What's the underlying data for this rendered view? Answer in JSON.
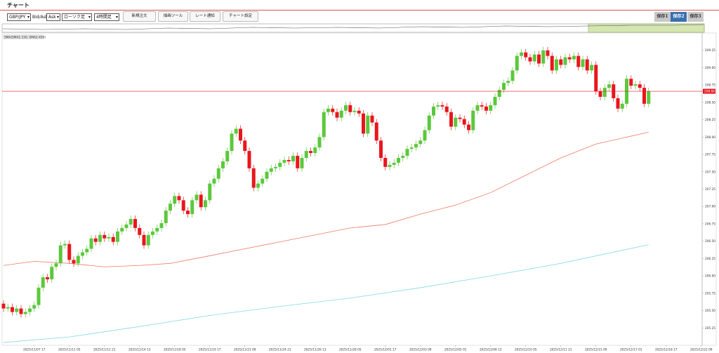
{
  "header": {
    "title": "チャート"
  },
  "toolbar": {
    "symbol": "GBP/JPY",
    "bid_ask_label": "Bid/Ask",
    "side": "Ask",
    "chart_style": "ローソク足",
    "timeframe": "4時間足",
    "buttons": [
      "新規注文",
      "描画ツール",
      "レート通知",
      "チャート設定"
    ],
    "saves": [
      "保存1",
      "保存2",
      "保存3"
    ]
  },
  "chart_data": {
    "type": "candlestick",
    "indicator_label": "SMA(SMA1:150, SMA2:450)",
    "up_color": "#5cc83c",
    "down_color": "#e8161e",
    "open": [
      205.6,
      205.53,
      205.55,
      205.48,
      205.53,
      205.45,
      205.48,
      205.53,
      205.58,
      205.83,
      205.98,
      205.95,
      206.13,
      206.18,
      206.44,
      206.46,
      206.23,
      206.18,
      206.29,
      206.34,
      206.39,
      206.54,
      206.49,
      206.59,
      206.54,
      206.56,
      206.49,
      206.64,
      206.69,
      206.74,
      206.82,
      206.69,
      206.59,
      206.44,
      206.59,
      206.64,
      206.69,
      206.76,
      206.94,
      207.04,
      207.15,
      207.09,
      206.94,
      206.89,
      207.09,
      207.17,
      206.99,
      207.09,
      207.33,
      207.4,
      207.55,
      207.65,
      207.8,
      208.05,
      208.12,
      207.95,
      207.8,
      207.55,
      207.27,
      207.33,
      207.4,
      207.5,
      207.55,
      207.57,
      207.63,
      207.67,
      207.65,
      207.73,
      207.55,
      207.7,
      207.8,
      207.77,
      207.85,
      208.0,
      208.36,
      208.41,
      208.36,
      208.28,
      208.38,
      208.46,
      208.36,
      208.38,
      208.34,
      208.05,
      208.31,
      208.21,
      207.95,
      207.7,
      207.57,
      207.6,
      207.63,
      207.7,
      207.73,
      207.83,
      207.85,
      207.9,
      207.95,
      208.1,
      208.31,
      208.44,
      208.46,
      208.44,
      208.36,
      208.15,
      208.28,
      208.26,
      208.18,
      208.1,
      208.38,
      208.46,
      208.44,
      208.38,
      208.46,
      208.58,
      208.68,
      208.78,
      208.81,
      208.96,
      209.17,
      209.22,
      209.15,
      209.09,
      209.19,
      209.06,
      209.25,
      209.17,
      208.96,
      209.12,
      209.04,
      209.15,
      209.12,
      209.17,
      209.01,
      209.12,
      208.96,
      209.04,
      208.66,
      208.58,
      208.71,
      208.76,
      208.56,
      208.41,
      208.48,
      208.84,
      208.74,
      208.76,
      208.71,
      208.48
    ],
    "high": [
      205.65,
      205.6,
      205.6,
      205.58,
      205.58,
      205.53,
      205.58,
      205.63,
      205.88,
      206.03,
      206.03,
      206.18,
      206.23,
      206.49,
      206.51,
      206.51,
      206.28,
      206.34,
      206.39,
      206.44,
      206.59,
      206.59,
      206.64,
      206.64,
      206.61,
      206.61,
      206.69,
      206.74,
      206.79,
      206.87,
      206.87,
      206.74,
      206.64,
      206.64,
      206.69,
      206.74,
      206.81,
      206.99,
      207.09,
      207.2,
      207.2,
      207.14,
      206.99,
      207.14,
      207.22,
      207.22,
      207.14,
      207.38,
      207.45,
      207.6,
      207.7,
      207.85,
      208.1,
      208.17,
      208.17,
      208.0,
      207.85,
      207.6,
      207.38,
      207.45,
      207.55,
      207.6,
      207.62,
      207.68,
      207.72,
      207.72,
      207.78,
      207.78,
      207.75,
      207.85,
      207.85,
      207.9,
      208.05,
      208.41,
      208.46,
      208.46,
      208.41,
      208.43,
      208.51,
      208.51,
      208.43,
      208.43,
      208.39,
      208.36,
      208.36,
      208.26,
      208.0,
      207.75,
      207.65,
      207.68,
      207.75,
      207.78,
      207.88,
      207.9,
      207.95,
      208.0,
      208.15,
      208.36,
      208.49,
      208.51,
      208.51,
      208.49,
      208.41,
      208.33,
      208.33,
      208.31,
      208.23,
      208.43,
      208.51,
      208.51,
      208.49,
      208.51,
      208.63,
      208.73,
      208.83,
      208.86,
      209.01,
      209.22,
      209.27,
      209.27,
      209.2,
      209.24,
      209.24,
      209.3,
      209.3,
      209.22,
      209.17,
      209.17,
      209.2,
      209.2,
      209.22,
      209.22,
      209.17,
      209.17,
      209.09,
      209.09,
      208.71,
      208.76,
      208.81,
      208.81,
      208.61,
      208.53,
      208.89,
      208.89,
      208.81,
      208.81,
      208.76,
      208.71
    ],
    "low": [
      205.48,
      205.48,
      205.43,
      205.43,
      205.4,
      205.4,
      205.43,
      205.48,
      205.53,
      205.78,
      205.9,
      205.9,
      206.08,
      206.13,
      206.39,
      206.18,
      206.13,
      206.13,
      206.24,
      206.29,
      206.34,
      206.44,
      206.44,
      206.49,
      206.49,
      206.44,
      206.44,
      206.59,
      206.64,
      206.69,
      206.64,
      206.54,
      206.39,
      206.39,
      206.54,
      206.59,
      206.64,
      206.71,
      206.89,
      206.99,
      207.04,
      206.89,
      206.84,
      206.84,
      207.04,
      206.94,
      206.94,
      207.04,
      207.28,
      207.35,
      207.5,
      207.6,
      207.75,
      208.0,
      207.9,
      207.75,
      207.5,
      207.22,
      207.22,
      207.28,
      207.35,
      207.45,
      207.5,
      207.52,
      207.58,
      207.6,
      207.6,
      207.5,
      207.5,
      207.65,
      207.72,
      207.72,
      207.8,
      207.95,
      208.31,
      208.31,
      208.23,
      208.23,
      208.33,
      208.31,
      208.31,
      208.29,
      208.0,
      208.0,
      208.16,
      207.9,
      207.65,
      207.52,
      207.52,
      207.55,
      207.58,
      207.65,
      207.68,
      207.78,
      207.8,
      207.85,
      207.9,
      208.05,
      208.26,
      208.39,
      208.39,
      208.31,
      208.1,
      208.1,
      208.21,
      208.13,
      208.05,
      208.05,
      208.33,
      208.39,
      208.33,
      208.33,
      208.41,
      208.53,
      208.63,
      208.73,
      208.76,
      208.91,
      209.12,
      209.1,
      209.04,
      209.04,
      209.01,
      209.01,
      209.12,
      208.91,
      208.91,
      208.99,
      208.99,
      209.07,
      209.07,
      208.96,
      208.96,
      208.91,
      208.91,
      208.61,
      208.53,
      208.53,
      208.66,
      208.51,
      208.36,
      208.36,
      208.43,
      208.69,
      208.69,
      208.66,
      208.43,
      208.43
    ],
    "close": [
      205.53,
      205.55,
      205.48,
      205.53,
      205.45,
      205.48,
      205.53,
      205.58,
      205.83,
      205.98,
      205.95,
      206.13,
      206.18,
      206.44,
      206.46,
      206.23,
      206.18,
      206.29,
      206.34,
      206.39,
      206.54,
      206.49,
      206.59,
      206.54,
      206.56,
      206.49,
      206.64,
      206.69,
      206.74,
      206.82,
      206.69,
      206.59,
      206.44,
      206.59,
      206.64,
      206.69,
      206.76,
      206.94,
      207.04,
      207.15,
      207.09,
      206.94,
      206.89,
      207.09,
      207.17,
      206.99,
      207.09,
      207.33,
      207.4,
      207.55,
      207.65,
      207.8,
      208.05,
      208.12,
      207.95,
      207.8,
      207.55,
      207.27,
      207.33,
      207.4,
      207.5,
      207.55,
      207.57,
      207.63,
      207.67,
      207.65,
      207.73,
      207.55,
      207.7,
      207.8,
      207.77,
      207.85,
      208.0,
      208.36,
      208.41,
      208.36,
      208.28,
      208.38,
      208.46,
      208.36,
      208.38,
      208.34,
      208.05,
      208.31,
      208.21,
      207.95,
      207.7,
      207.57,
      207.6,
      207.63,
      207.7,
      207.73,
      207.83,
      207.85,
      207.9,
      207.95,
      208.1,
      208.31,
      208.44,
      208.46,
      208.44,
      208.36,
      208.15,
      208.28,
      208.26,
      208.18,
      208.1,
      208.38,
      208.46,
      208.44,
      208.38,
      208.46,
      208.58,
      208.68,
      208.78,
      208.81,
      208.96,
      209.17,
      209.22,
      209.15,
      209.09,
      209.19,
      209.06,
      209.25,
      209.17,
      208.96,
      209.12,
      209.04,
      209.15,
      209.12,
      209.17,
      209.01,
      209.12,
      208.96,
      209.04,
      208.66,
      208.58,
      208.71,
      208.76,
      208.56,
      208.41,
      208.48,
      208.84,
      208.74,
      208.76,
      208.71,
      208.48,
      208.66
    ],
    "series": [
      {
        "color": "#f07a63",
        "x": [
          0,
          7,
          15,
          23,
          31,
          38,
          47,
          55,
          63,
          71,
          79,
          87,
          95,
          103,
          111,
          119,
          127,
          135,
          147
        ],
        "values": [
          206.15,
          206.21,
          206.18,
          206.13,
          206.15,
          206.18,
          206.29,
          206.39,
          206.49,
          206.59,
          206.69,
          206.74,
          206.89,
          207.02,
          207.2,
          207.45,
          207.7,
          207.9,
          208.07
        ]
      },
      {
        "color": "#86d8e8",
        "x": [
          0,
          15,
          31,
          47,
          63,
          79,
          95,
          111,
          127,
          147
        ],
        "values": [
          205.04,
          205.12,
          205.27,
          205.43,
          205.56,
          205.68,
          205.83,
          206.0,
          206.18,
          206.45
        ]
      }
    ],
    "current_price": 208.66,
    "current_price_color": "#e8161e",
    "ylim": [
      205.0,
      209.5
    ],
    "yticks": [
      205.25,
      {
        "value": 205.5,
        "label": "205.50"
      },
      205.75,
      {
        "value": 206,
        "label": "206.00"
      },
      206.25,
      {
        "value": 206.5,
        "label": "206.50"
      },
      206.75,
      {
        "value": 207,
        "label": "207.00"
      },
      207.25,
      {
        "value": 207.5,
        "label": "207.50"
      },
      207.75,
      {
        "value": 208,
        "label": "208.00"
      },
      208.25,
      {
        "value": 208.5,
        "label": "208.50"
      },
      208.75,
      {
        "value": 209,
        "label": "209.00"
      },
      209.25
    ],
    "xlim": [
      -0.32,
      159.2
    ],
    "xticks": [
      {
        "value": 7,
        "label": "2025/11/07 17"
      },
      {
        "value": 15,
        "label": "2025/11/11 05"
      },
      {
        "value": 23,
        "label": "2025/11/12 21"
      },
      {
        "value": 31,
        "label": "2025/11/14 13"
      },
      {
        "value": 39,
        "label": "2025/11/18 05"
      },
      {
        "value": 47,
        "label": "2025/11/19 17"
      },
      {
        "value": 55,
        "label": "2025/11/21 09"
      },
      {
        "value": 63,
        "label": "2025/11/24 21"
      },
      {
        "value": 71,
        "label": "2025/11/26 13"
      },
      {
        "value": 79,
        "label": "2025/11/28 05"
      },
      {
        "value": 87,
        "label": "2025/12/01 17"
      },
      {
        "value": 95,
        "label": "2025/12/03 09"
      },
      {
        "value": 103,
        "label": "2025/12/05 01"
      },
      {
        "value": 111,
        "label": "2025/12/08 13"
      },
      {
        "value": 119,
        "label": "2025/12/10 05"
      },
      {
        "value": 127,
        "label": "2025/12/11 21"
      },
      {
        "value": 135,
        "label": "2025/12/15 09"
      },
      {
        "value": 143,
        "label": "2025/12/17 01"
      },
      {
        "value": 151,
        "label": "2025/12/18 17"
      },
      {
        "value": 159,
        "label": "2025/12/22 09"
      }
    ]
  }
}
